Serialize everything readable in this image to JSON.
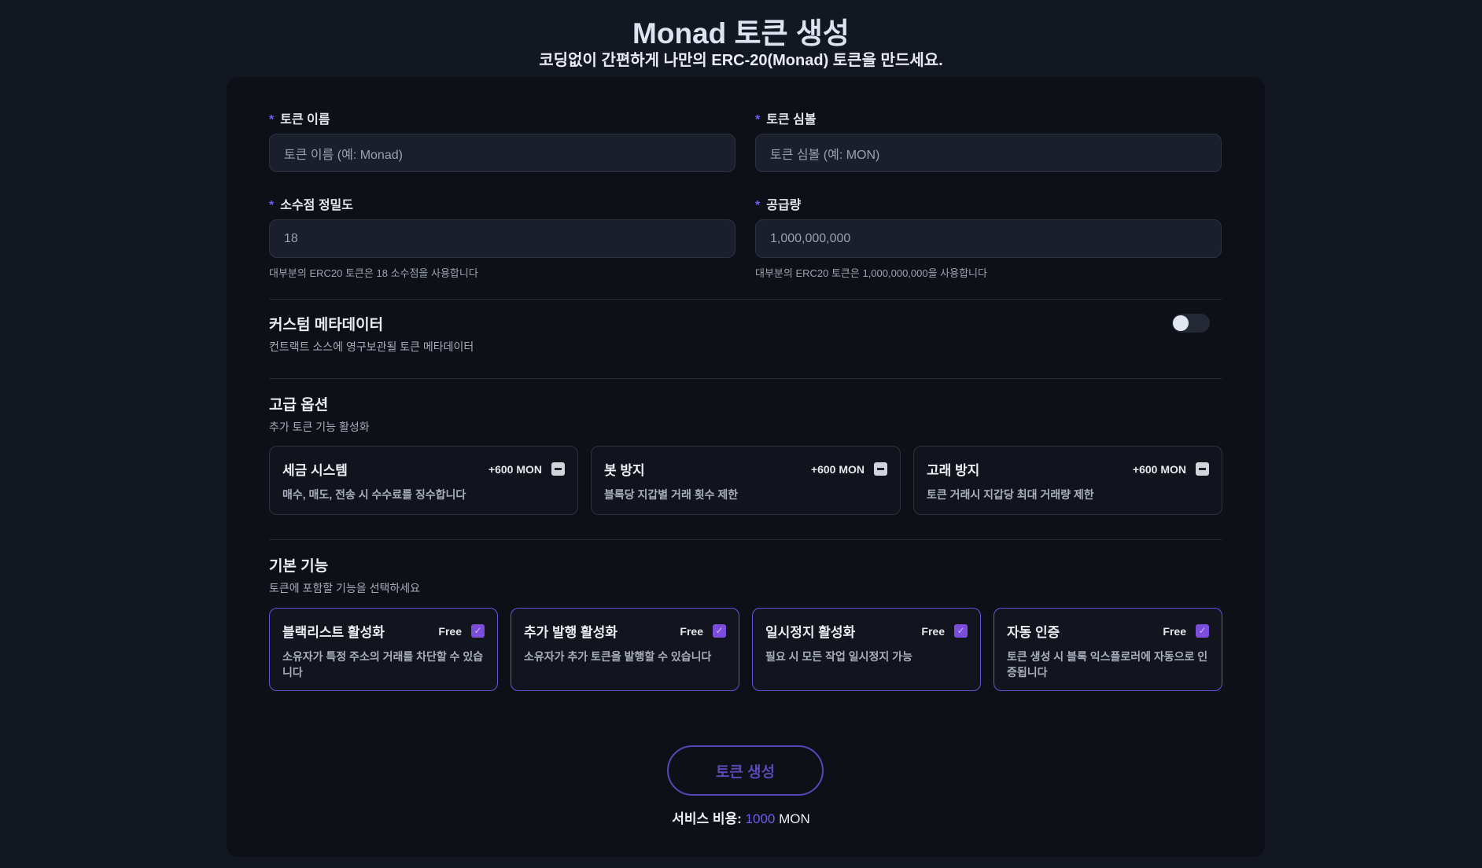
{
  "header": {
    "title": "Monad 토큰 생성",
    "subtitle": "코딩없이 간편하게 나만의 ERC-20(Monad) 토큰을 만드세요."
  },
  "form": {
    "name": {
      "label": "토큰 이름",
      "placeholder": "토큰 이름 (예: Monad)",
      "value": ""
    },
    "symbol": {
      "label": "토큰 심볼",
      "placeholder": "토큰 심볼 (예: MON)",
      "value": ""
    },
    "decimals": {
      "label": "소수점 정밀도",
      "value": "18",
      "help": "대부분의 ERC20 토큰은 18 소수점을 사용합니다"
    },
    "supply": {
      "label": "공급량",
      "value": "1,000,000,000",
      "help": "대부분의 ERC20 토큰은 1,000,000,000을 사용합니다"
    },
    "required_mark": "*"
  },
  "metadata": {
    "title": "커스텀 메타데이터",
    "subtitle": "컨트랙트 소스에 영구보관될 토큰 메타데이터",
    "enabled": false
  },
  "advanced": {
    "title": "고급 옵션",
    "subtitle": "추가 토큰 기능 활성화",
    "options": [
      {
        "title": "세금 시스템",
        "price": "+600 MON",
        "desc": "매수, 매도, 전송 시 수수료를 징수합니다",
        "checked": false
      },
      {
        "title": "봇 방지",
        "price": "+600 MON",
        "desc": "블록당 지갑별 거래 횟수 제한",
        "checked": false
      },
      {
        "title": "고래 방지",
        "price": "+600 MON",
        "desc": "토큰 거래시 지갑당 최대 거래량 제한",
        "checked": false
      }
    ]
  },
  "basic": {
    "title": "기본 기능",
    "subtitle": "토큰에 포함할 기능을 선택하세요",
    "features": [
      {
        "title": "블랙리스트 활성화",
        "price": "Free",
        "desc": "소유자가 특정 주소의 거래를 차단할 수 있습니다",
        "checked": true
      },
      {
        "title": "추가 발행 활성화",
        "price": "Free",
        "desc": "소유자가 추가 토큰을 발행할 수 있습니다",
        "checked": true
      },
      {
        "title": "일시정지 활성화",
        "price": "Free",
        "desc": "필요 시 모든 작업 일시정지 가능",
        "checked": true
      },
      {
        "title": "자동 인증",
        "price": "Free",
        "desc": "토큰 생성 시 블록 익스플로러에 자동으로 인증됩니다",
        "checked": true
      }
    ]
  },
  "footer": {
    "button": "토큰 생성",
    "cost_label": "서비스 비용:",
    "cost_value": "1000",
    "cost_unit": "MON"
  },
  "colors": {
    "accent": "#6d5bf5",
    "checkbox": "#7c4ddb",
    "background": "#131722",
    "panel": "#0e1017"
  }
}
